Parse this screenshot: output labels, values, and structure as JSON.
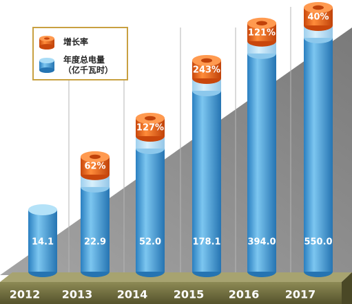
{
  "chart_data": {
    "type": "bar",
    "log_scale": true,
    "categories": [
      "2012",
      "2013",
      "2014",
      "2015",
      "2016",
      "2017"
    ],
    "series": [
      {
        "name": "增长率",
        "color": "#e8631a",
        "values": [
          null,
          62,
          127,
          243,
          121,
          40
        ],
        "value_labels": [
          null,
          "62%",
          "127%",
          "243%",
          "121%",
          "40%"
        ]
      },
      {
        "name": "年度总电量（亿千瓦时）",
        "color": "#3d9ad6",
        "values": [
          14.1,
          22.9,
          52.0,
          178.1,
          394.0,
          550.0
        ],
        "value_labels": [
          "14.1",
          "22.9",
          "52.0",
          "178.1",
          "394.0",
          "550.0"
        ]
      }
    ]
  }
}
